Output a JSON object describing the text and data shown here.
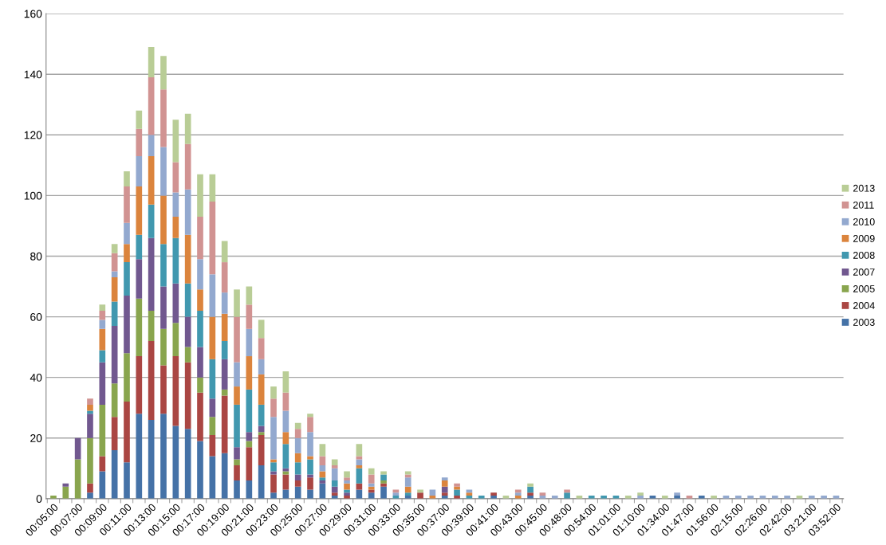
{
  "chart_data": {
    "type": "bar",
    "stacked": true,
    "legend": "right",
    "grid": "y",
    "ylim": [
      0,
      160
    ],
    "yticks": [
      0,
      20,
      40,
      60,
      80,
      100,
      120,
      140,
      160
    ],
    "categories": [
      "00:05:00",
      null,
      "00:07:00",
      null,
      "00:09:00",
      null,
      "00:11:00",
      null,
      "00:13:00",
      null,
      "00:15:00",
      null,
      "00:17:00",
      null,
      "00:19:00",
      null,
      "00:21:00",
      null,
      "00:23:00",
      null,
      "00:25:00",
      null,
      "00:27:00",
      null,
      "00:29:00",
      null,
      "00:31:00",
      null,
      "00:33:00",
      null,
      "00:35:00",
      null,
      "00:37:00",
      null,
      "00:39:00",
      null,
      "00:41:00",
      null,
      "00:43:00",
      null,
      "00:45:00",
      null,
      "00:48:00",
      null,
      "00:54:00",
      null,
      "01:01:00",
      null,
      "01:10:00",
      null,
      "01:34:00",
      null,
      "01:47:00",
      null,
      "01:56:00",
      null,
      "02:15:00",
      null,
      "02:26:00",
      null,
      "02:42:00",
      null,
      "03:21:00",
      null,
      "03:52:00"
    ],
    "series": [
      {
        "name": "2003",
        "color": "#4572a7",
        "values": [
          0,
          0,
          0,
          2,
          9,
          16,
          12,
          28,
          26,
          28,
          24,
          23,
          19,
          14,
          15,
          6,
          6,
          11,
          2,
          3,
          4,
          3,
          5,
          1,
          0,
          3,
          2,
          4,
          0,
          1,
          0,
          0,
          1,
          0,
          0,
          0,
          1,
          0,
          0,
          1,
          0,
          0,
          0,
          0,
          0,
          0,
          0,
          0,
          0,
          1,
          0,
          1,
          0,
          1,
          0,
          0,
          0,
          0,
          0,
          0,
          0,
          0,
          0,
          0,
          0
        ]
      },
      {
        "name": "2004",
        "color": "#aa4643",
        "values": [
          0,
          0,
          0,
          3,
          5,
          11,
          20,
          19,
          26,
          16,
          23,
          22,
          16,
          7,
          19,
          5,
          11,
          10,
          6,
          5,
          2,
          4,
          0,
          1,
          1,
          2,
          1,
          1,
          0,
          0,
          2,
          0,
          1,
          1,
          0,
          0,
          1,
          0,
          0,
          1,
          0,
          0,
          0,
          0,
          0,
          0,
          0,
          0,
          0,
          0,
          0,
          0,
          0,
          0,
          0,
          0,
          0,
          0,
          0,
          0,
          0,
          0,
          0,
          0,
          0
        ]
      },
      {
        "name": "2005",
        "color": "#89a54e",
        "values": [
          1,
          4,
          13,
          15,
          17,
          11,
          16,
          19,
          10,
          12,
          11,
          5,
          5,
          6,
          2,
          2,
          2,
          1,
          0,
          1,
          0,
          0,
          0,
          0,
          0,
          0,
          0,
          1,
          0,
          0,
          0,
          0,
          0,
          0,
          0,
          0,
          0,
          0,
          0,
          0,
          0,
          0,
          0,
          0,
          0,
          0,
          0,
          0,
          0,
          0,
          0,
          0,
          0,
          0,
          0,
          0,
          0,
          0,
          0,
          0,
          0,
          0,
          0,
          0,
          0
        ]
      },
      {
        "name": "2007",
        "color": "#71588f",
        "values": [
          0,
          1,
          7,
          8,
          14,
          19,
          19,
          13,
          24,
          14,
          13,
          10,
          10,
          6,
          10,
          4,
          3,
          2,
          1,
          1,
          2,
          1,
          1,
          2,
          1,
          0,
          0,
          0,
          0,
          0,
          0,
          0,
          2,
          0,
          0,
          0,
          0,
          0,
          0,
          0,
          0,
          0,
          0,
          0,
          0,
          0,
          0,
          0,
          0,
          0,
          0,
          0,
          0,
          0,
          0,
          0,
          0,
          0,
          0,
          0,
          0,
          0,
          0,
          0,
          0
        ]
      },
      {
        "name": "2008",
        "color": "#4198af",
        "values": [
          0,
          0,
          0,
          1,
          4,
          8,
          11,
          8,
          11,
          14,
          15,
          11,
          12,
          13,
          6,
          14,
          14,
          7,
          3,
          8,
          4,
          5,
          1,
          2,
          1,
          5,
          0,
          2,
          1,
          1,
          0,
          0,
          0,
          2,
          1,
          1,
          0,
          0,
          0,
          2,
          0,
          0,
          2,
          0,
          1,
          1,
          1,
          0,
          0,
          0,
          0,
          0,
          0,
          0,
          0,
          0,
          0,
          0,
          0,
          0,
          0,
          0,
          0,
          0,
          0
        ]
      },
      {
        "name": "2009",
        "color": "#db843d",
        "values": [
          0,
          0,
          0,
          2,
          7,
          8,
          6,
          16,
          16,
          16,
          7,
          16,
          7,
          14,
          9,
          6,
          11,
          10,
          1,
          4,
          3,
          1,
          2,
          0,
          2,
          1,
          1,
          0,
          0,
          2,
          0,
          1,
          2,
          1,
          1,
          0,
          0,
          0,
          1,
          0,
          0,
          0,
          0,
          0,
          0,
          0,
          0,
          0,
          0,
          0,
          0,
          0,
          0,
          0,
          0,
          0,
          0,
          0,
          0,
          0,
          0,
          0,
          0,
          0,
          0
        ]
      },
      {
        "name": "2010",
        "color": "#93a9cf",
        "values": [
          0,
          0,
          0,
          0,
          3,
          2,
          7,
          10,
          7,
          16,
          8,
          15,
          10,
          14,
          7,
          8,
          9,
          5,
          14,
          7,
          5,
          8,
          2,
          4,
          1,
          2,
          1,
          0,
          1,
          3,
          0,
          2,
          1,
          0,
          1,
          0,
          0,
          0,
          1,
          0,
          1,
          1,
          0,
          0,
          0,
          0,
          0,
          0,
          1,
          0,
          0,
          1,
          0,
          0,
          0,
          1,
          1,
          1,
          1,
          1,
          1,
          0,
          1,
          1,
          1
        ]
      },
      {
        "name": "2011",
        "color": "#d19392",
        "values": [
          0,
          0,
          0,
          2,
          3,
          6,
          12,
          9,
          19,
          19,
          10,
          15,
          14,
          24,
          10,
          15,
          8,
          7,
          6,
          6,
          3,
          5,
          3,
          1,
          1,
          1,
          3,
          0,
          1,
          1,
          0,
          0,
          0,
          1,
          0,
          0,
          0,
          0,
          1,
          0,
          1,
          0,
          1,
          0,
          0,
          0,
          0,
          0,
          0,
          0,
          0,
          0,
          1,
          0,
          0,
          0,
          0,
          0,
          0,
          0,
          0,
          0,
          0,
          0,
          0
        ]
      },
      {
        "name": "2013",
        "color": "#b9cd96",
        "values": [
          0,
          0,
          0,
          0,
          2,
          3,
          5,
          6,
          10,
          11,
          14,
          10,
          14,
          9,
          7,
          9,
          6,
          6,
          4,
          7,
          2,
          1,
          4,
          2,
          2,
          4,
          2,
          1,
          0,
          1,
          1,
          0,
          0,
          0,
          0,
          0,
          0,
          1,
          0,
          1,
          0,
          0,
          0,
          1,
          0,
          0,
          0,
          1,
          1,
          0,
          1,
          0,
          0,
          0,
          1,
          0,
          0,
          0,
          0,
          0,
          0,
          1,
          0,
          0,
          0
        ]
      }
    ]
  }
}
